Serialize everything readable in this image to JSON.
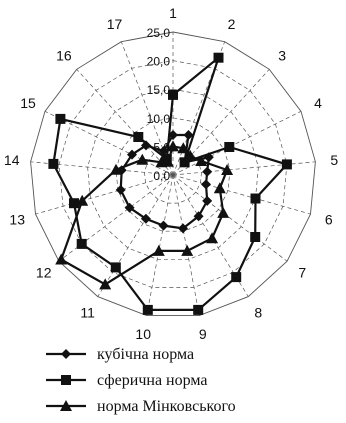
{
  "chart_data": {
    "type": "radar",
    "categories": [
      "1",
      "2",
      "3",
      "4",
      "5",
      "6",
      "7",
      "8",
      "9",
      "10",
      "11",
      "12",
      "13",
      "14",
      "15",
      "16",
      "17"
    ],
    "rlim": [
      0,
      25
    ],
    "ticks": [
      "0,0",
      "5,0",
      "10,0",
      "15,0",
      "20,0",
      "25,0"
    ],
    "tick_values": [
      0,
      5,
      10,
      15,
      20,
      25
    ],
    "grid": true,
    "legend_position": "bottom",
    "series": [
      {
        "name": "кубічна норма",
        "marker": "diamond",
        "values": [
          7.0,
          7.5,
          3.0,
          7.0,
          6.0,
          6.0,
          7.5,
          8.5,
          9.5,
          9.0,
          9.0,
          9.5,
          9.5,
          9.0,
          8.0,
          7.0,
          4.5
        ]
      },
      {
        "name": "сферична норма",
        "marker": "square",
        "values": [
          14.0,
          22.0,
          3.0,
          11.0,
          20.0,
          15.0,
          18.0,
          21.0,
          24.0,
          24.0,
          19.0,
          20.0,
          18.0,
          21.0,
          22.0,
          9.0,
          3.0
        ]
      },
      {
        "name": "норма Мінковського",
        "marker": "triangle",
        "values": [
          5.0,
          5.0,
          4.5,
          5.5,
          9.5,
          8.5,
          11.0,
          13.0,
          13.5,
          13.5,
          22.5,
          24.5,
          16.5,
          10.0,
          6.0,
          3.0,
          2.5
        ]
      }
    ]
  }
}
